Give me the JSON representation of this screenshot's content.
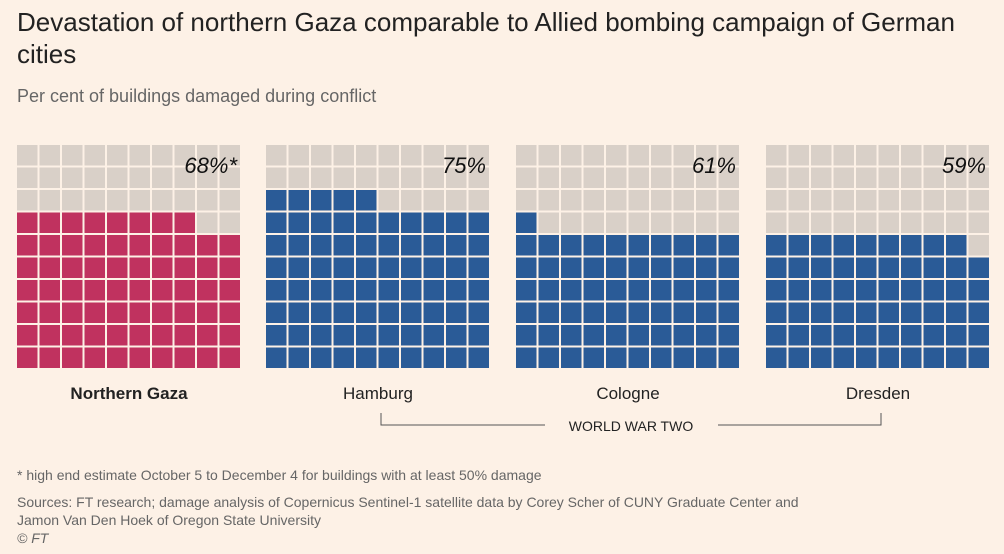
{
  "title": "Devastation of northern Gaza comparable to Allied bombing campaign of German cities",
  "subtitle": "Per cent of buildings damaged during conflict",
  "chart_data": {
    "type": "waffle",
    "grid": [
      10,
      10
    ],
    "categories": [
      "Northern Gaza",
      "Hamburg",
      "Cologne",
      "Dresden"
    ],
    "values": [
      68,
      75,
      61,
      59
    ],
    "value_labels": [
      "68%*",
      "75%",
      "61%",
      "59%"
    ],
    "colors": [
      "#c0325f",
      "#2a5b97",
      "#2a5b97",
      "#2a5b97"
    ],
    "empty_color": "#d9d0c8",
    "group_label": "WORLD WAR TWO",
    "group_members": [
      "Hamburg",
      "Cologne",
      "Dresden"
    ]
  },
  "footnote": "* high end estimate October 5 to December 4 for buildings with at least 50% damage",
  "sources_line1": "Sources: FT research; damage analysis of Copernicus Sentinel-1 satellite data by Corey Scher of CUNY Graduate Center and",
  "sources_line2": "Jamon Van Den Hoek of Oregon State University",
  "credit": "© FT"
}
